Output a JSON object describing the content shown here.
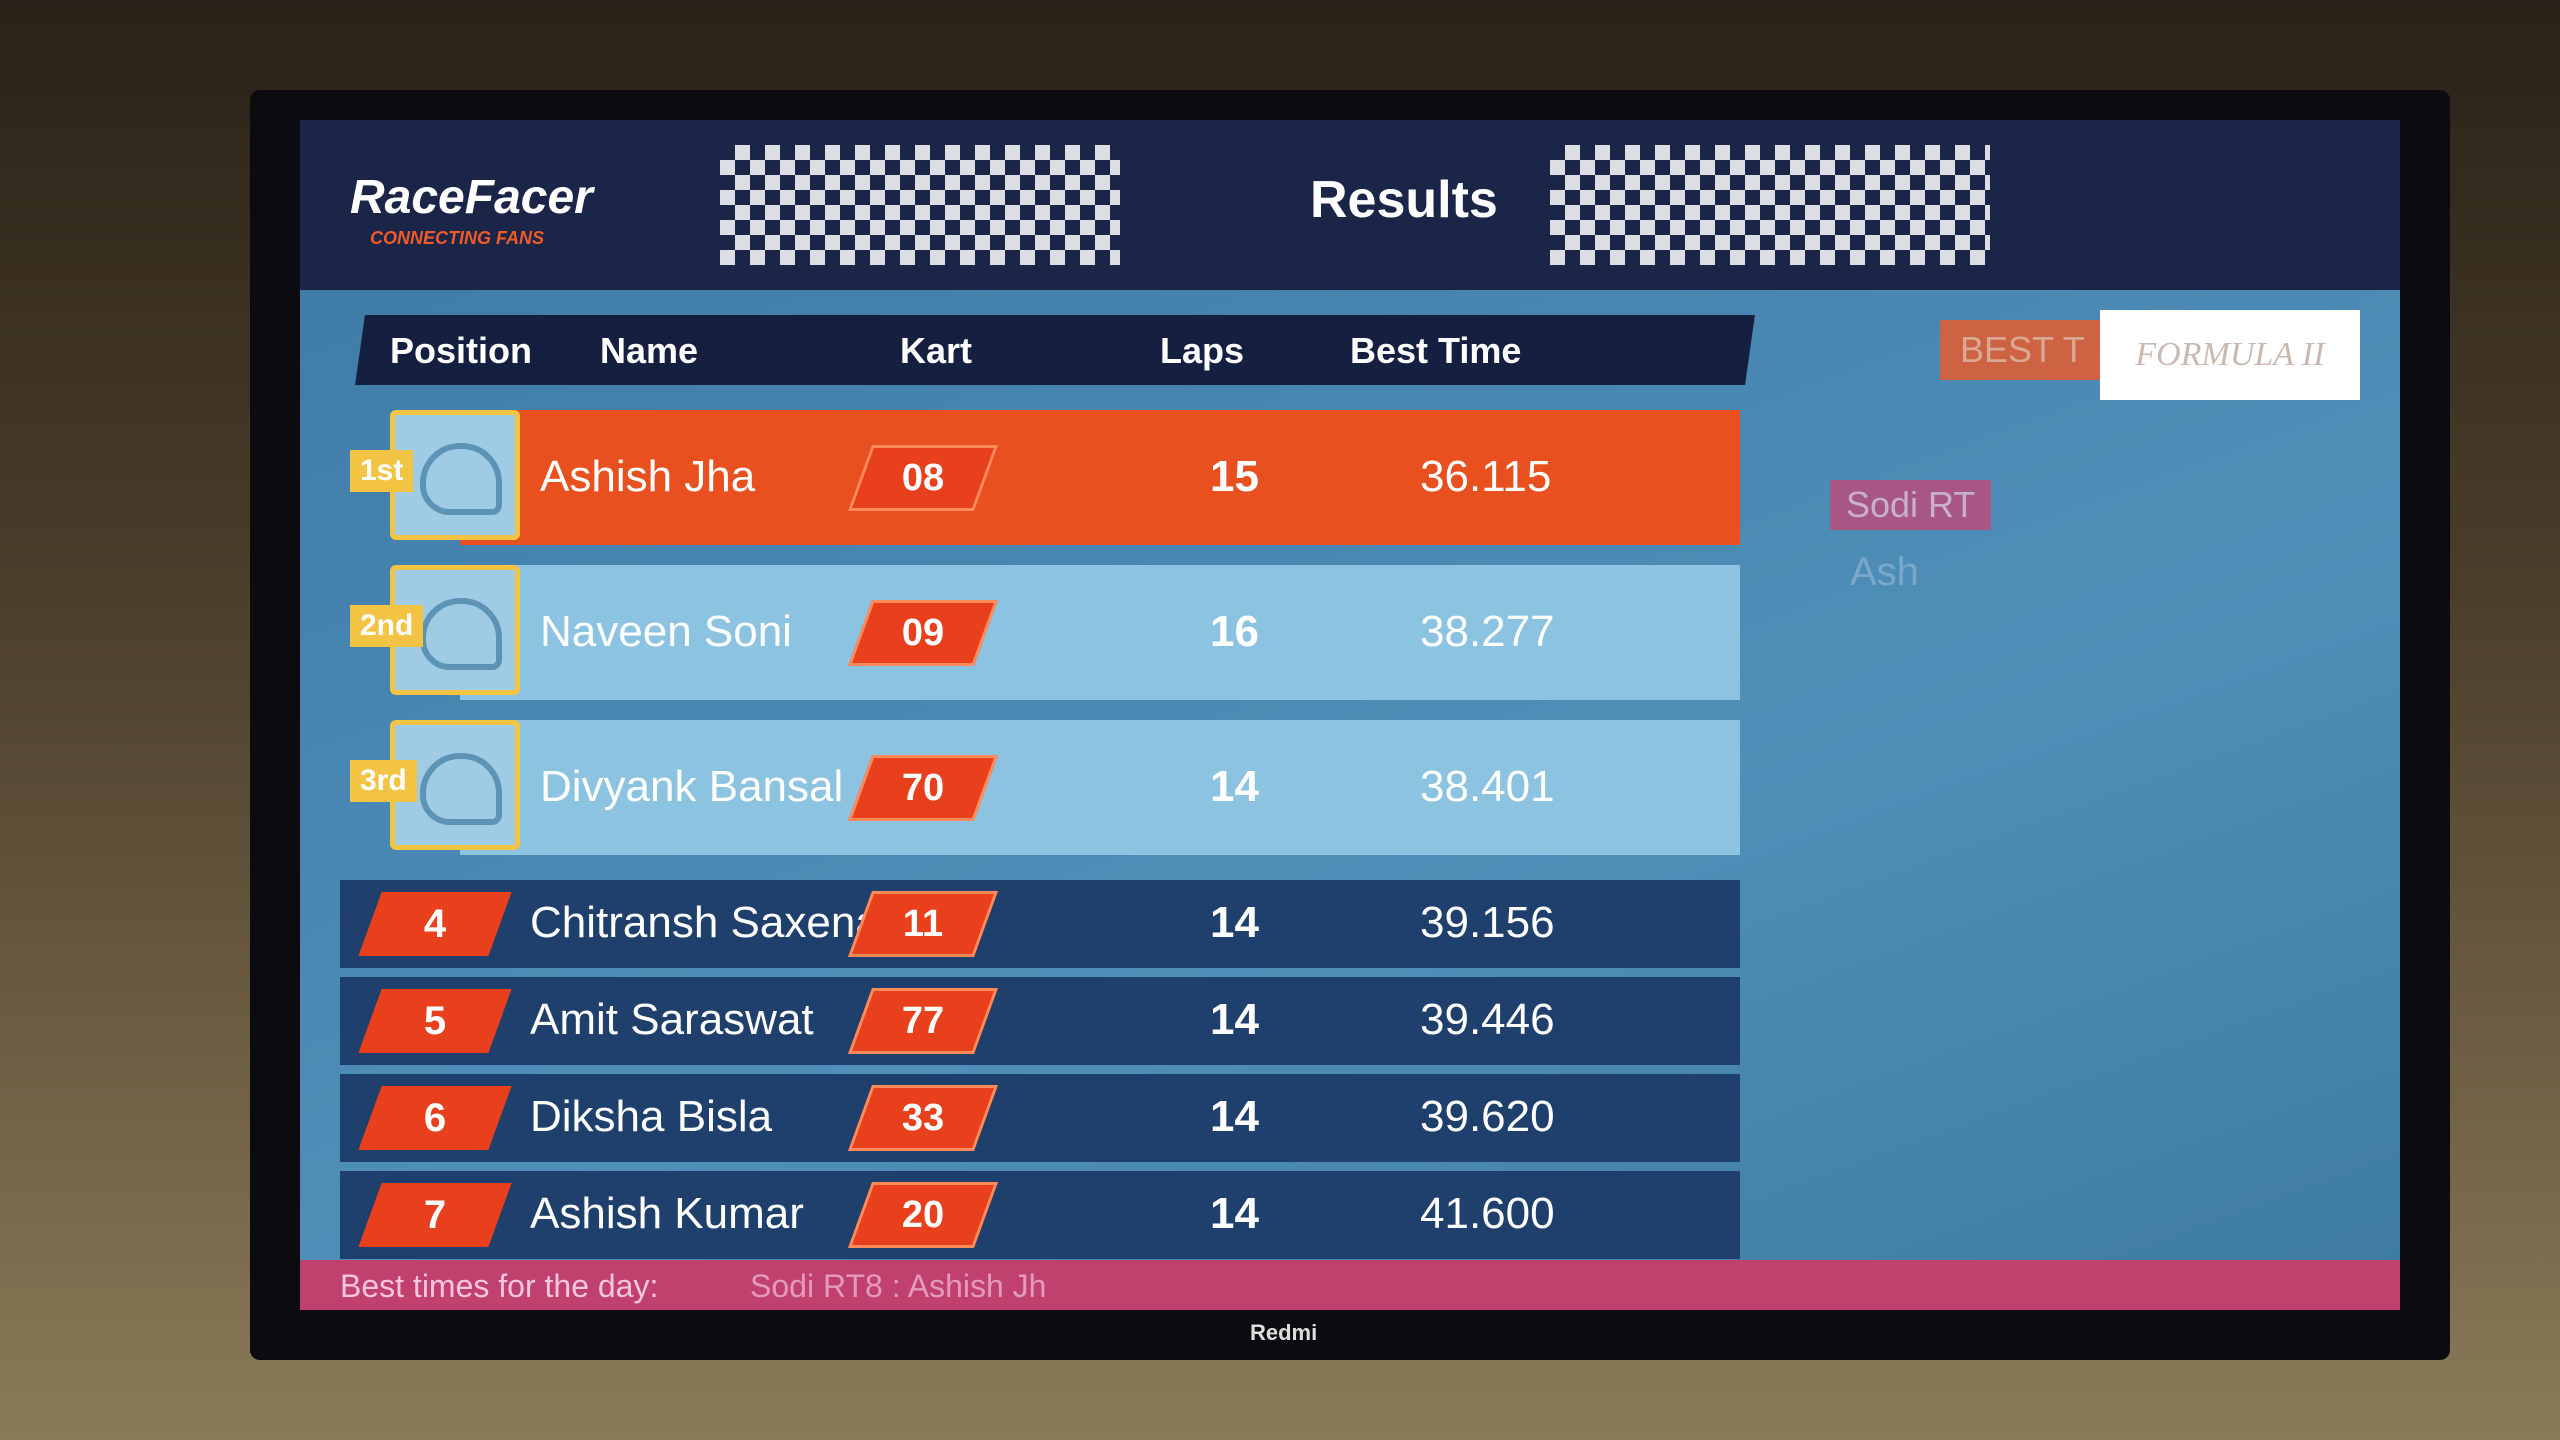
{
  "header": {
    "logo": "RaceFacer",
    "tagline": "CONNECTING FANS",
    "title": "Results"
  },
  "table": {
    "columns": [
      "Position",
      "Name",
      "Kart",
      "Laps",
      "Best Time"
    ],
    "rows": [
      [
        "1st",
        "Ashish Jha",
        "08",
        15,
        "36.115"
      ],
      [
        "2nd",
        "Naveen Soni",
        "09",
        16,
        "38.277"
      ],
      [
        "3rd",
        "Divyank Bansal",
        "70",
        14,
        "38.401"
      ],
      [
        4,
        "Chitransh Saxena",
        "11",
        14,
        "39.156"
      ],
      [
        5,
        "Amit Saraswat",
        "77",
        14,
        "39.446"
      ],
      [
        6,
        "Diksha Bisla",
        "33",
        14,
        "39.620"
      ],
      [
        7,
        "Ashish Kumar",
        "20",
        14,
        "41.600"
      ]
    ]
  },
  "side_panel": {
    "tab": "BEST T",
    "sponsor": "FORMULA II",
    "entries": [
      "Sodi RT",
      "Ash"
    ]
  },
  "footer": {
    "label": "Best times for the day:",
    "ticker": "Sodi RT8 : Ashish Jh"
  },
  "tv_brand": "Redmi"
}
